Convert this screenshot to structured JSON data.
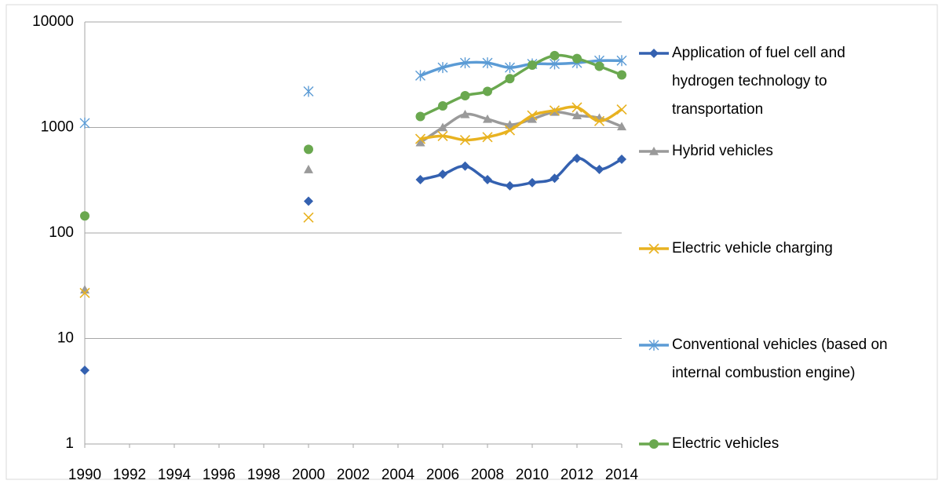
{
  "chart_data": {
    "type": "line",
    "log_scale": true,
    "grid": true,
    "legend": "right",
    "x": [
      1990,
      2000,
      2005,
      2006,
      2007,
      2008,
      2009,
      2010,
      2011,
      2012,
      2013,
      2014
    ],
    "xlim": [
      1990,
      2014
    ],
    "xticks": [
      1990,
      1992,
      1994,
      1996,
      1998,
      2000,
      2002,
      2004,
      2006,
      2008,
      2010,
      2012,
      2014
    ],
    "ylim": [
      1,
      10000
    ],
    "yticks": [
      1,
      10,
      100,
      1000,
      10000
    ],
    "series": [
      {
        "name": "Application of fuel cell and hydrogen technology to transportation",
        "color": "#3461b0",
        "marker": "diamond",
        "values": [
          5,
          200,
          320,
          360,
          430,
          320,
          280,
          300,
          330,
          510,
          400,
          500
        ]
      },
      {
        "name": "Hybrid vehicles",
        "color": "#9a9a9a",
        "marker": "triangle",
        "values": [
          29,
          400,
          720,
          1000,
          1330,
          1200,
          1060,
          1200,
          1400,
          1300,
          1230,
          1020
        ]
      },
      {
        "name": "Electric vehicle charging",
        "color": "#e8b220",
        "marker": "x",
        "values": [
          27,
          140,
          780,
          830,
          760,
          810,
          940,
          1300,
          1450,
          1550,
          1150,
          1480
        ]
      },
      {
        "name": "Conventional vehicles (based on internal combustion engine)",
        "color": "#5b9bd5",
        "marker": "asterisk",
        "values": [
          1100,
          2200,
          3100,
          3700,
          4100,
          4100,
          3700,
          4000,
          4000,
          4100,
          4300,
          4300
        ]
      },
      {
        "name": "Electric vehicles",
        "color": "#6aa84f",
        "marker": "circle",
        "values": [
          145,
          620,
          1270,
          1600,
          2000,
          2200,
          2900,
          3900,
          4800,
          4500,
          3800,
          3150
        ]
      }
    ]
  }
}
